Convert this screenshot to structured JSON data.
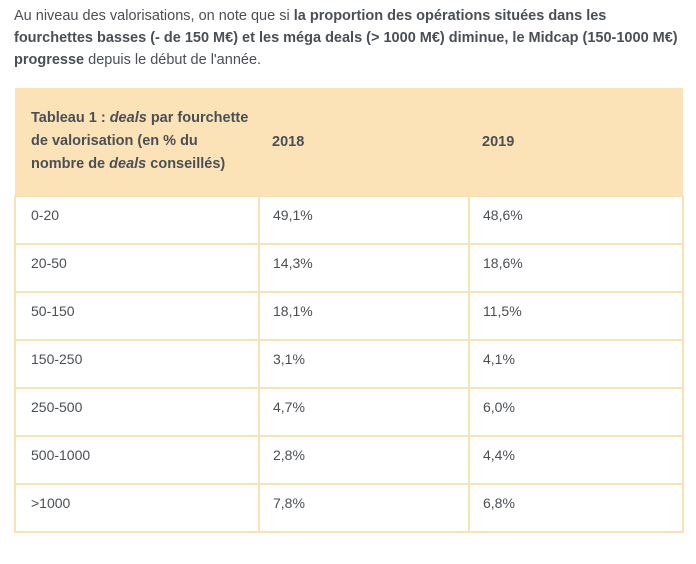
{
  "paragraph": {
    "normal_start": "Au niveau des valorisations, on note que si ",
    "bold": "la proportion des opérations situées dans les fourchettes basses (- de 150 M€) et les méga deals (> 1000 M€) diminue, le Midcap (150-1000 M€) progresse",
    "normal_end": " depuis le début de l'année."
  },
  "table": {
    "title": {
      "part1": "Tableau 1 : ",
      "italic1": "deals",
      "part2": " par fourchette de valorisation (en % du nombre de ",
      "italic2": "deals",
      "part3": " conseillés)"
    },
    "columns": {
      "year1": "2018",
      "year2": "2019"
    },
    "rows": [
      {
        "range": "0-20",
        "y2018": "49,1%",
        "y2019": "48,6%"
      },
      {
        "range": "20-50",
        "y2018": "14,3%",
        "y2019": "18,6%"
      },
      {
        "range": "50-150",
        "y2018": "18,1%",
        "y2019": "11,5%"
      },
      {
        "range": "150-250",
        "y2018": "3,1%",
        "y2019": "4,1%"
      },
      {
        "range": "250-500",
        "y2018": "4,7%",
        "y2019": "6,0%"
      },
      {
        "range": "500-1000",
        "y2018": "2,8%",
        "y2019": "4,4%"
      },
      {
        "range": ">1000",
        "y2018": "7,8%",
        "y2019": "6,8%"
      }
    ],
    "colors": {
      "header_bg": "#fbe3b7",
      "border": "#f8e3b6",
      "text": "#4a4f55"
    }
  }
}
